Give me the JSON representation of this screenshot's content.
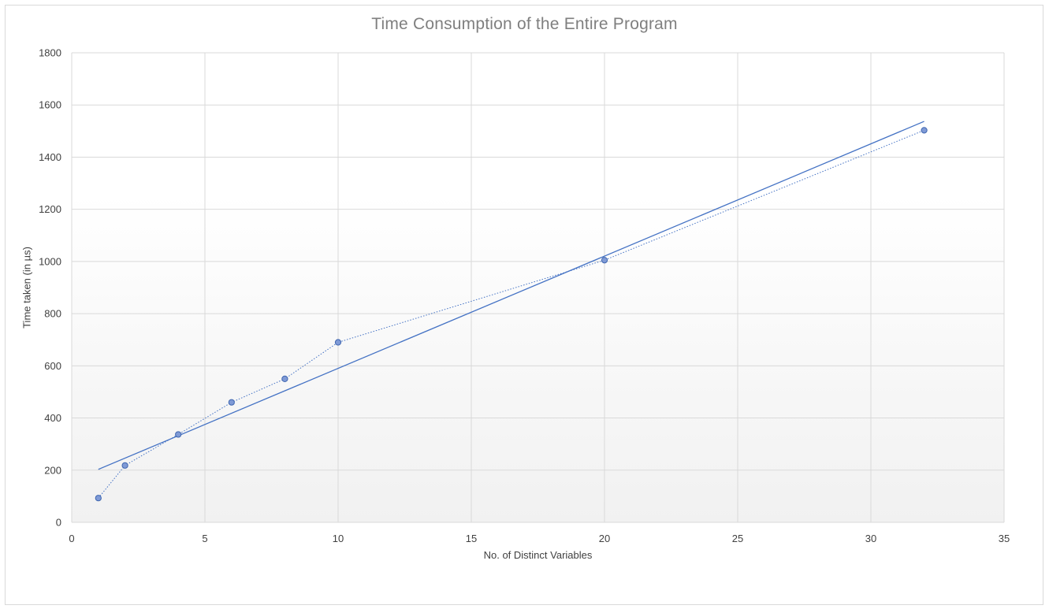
{
  "chart_data": {
    "type": "scatter",
    "title": "Time Consumption of the Entire Program",
    "xlabel": "No. of Distinct Variables",
    "ylabel": "Time taken (in µs)",
    "xlim": [
      0,
      35
    ],
    "ylim": [
      0,
      1800
    ],
    "x_ticks": [
      "0",
      "5",
      "10",
      "15",
      "20",
      "25",
      "30",
      "35"
    ],
    "y_ticks": [
      "0",
      "200",
      "400",
      "600",
      "800",
      "1000",
      "1200",
      "1400",
      "1600",
      "1800"
    ],
    "grid": true,
    "legend": "none",
    "series": [
      {
        "style": "markers with dotted connecting line",
        "color": "#4472C4",
        "points": [
          {
            "x": 1,
            "y": 93
          },
          {
            "x": 2,
            "y": 218
          },
          {
            "x": 4,
            "y": 337
          },
          {
            "x": 6,
            "y": 460
          },
          {
            "x": 8,
            "y": 550
          },
          {
            "x": 10,
            "y": 690
          },
          {
            "x": 20,
            "y": 1005
          },
          {
            "x": 32,
            "y": 1503
          }
        ]
      }
    ],
    "trendline": {
      "type": "linear",
      "color": "#4472C4",
      "x_range": [
        1,
        32
      ],
      "y_at_start": 203,
      "y_at_end": 1537
    }
  }
}
